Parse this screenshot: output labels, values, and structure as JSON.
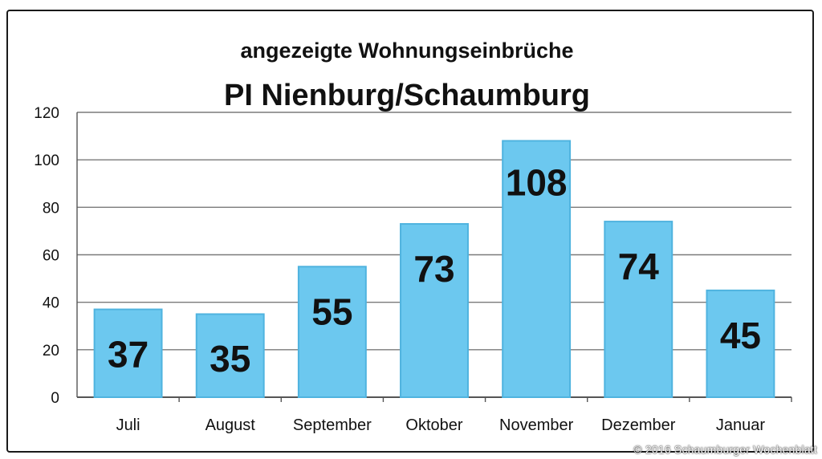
{
  "chart_data": {
    "type": "bar",
    "title": "angezeigte Wohnungseinbrüche",
    "subtitle": "PI Nienburg/Schaumburg",
    "categories": [
      "Juli",
      "August",
      "September",
      "Oktober",
      "November",
      "Dezember",
      "Januar"
    ],
    "values": [
      37,
      35,
      55,
      73,
      108,
      74,
      45
    ],
    "data_labels": [
      "37",
      "35",
      "55",
      "73",
      "108",
      "74",
      "45"
    ],
    "yticks": [
      "0",
      "20",
      "40",
      "60",
      "80",
      "100",
      "120"
    ],
    "ylim": [
      0,
      120
    ],
    "grid": true,
    "legend": "none",
    "bar_color": "#6cc8ef",
    "bar_edge_color": "#4fb3df",
    "label_color": "#111111"
  },
  "credit": "© 2016 Schaumburger Wochenblatt"
}
